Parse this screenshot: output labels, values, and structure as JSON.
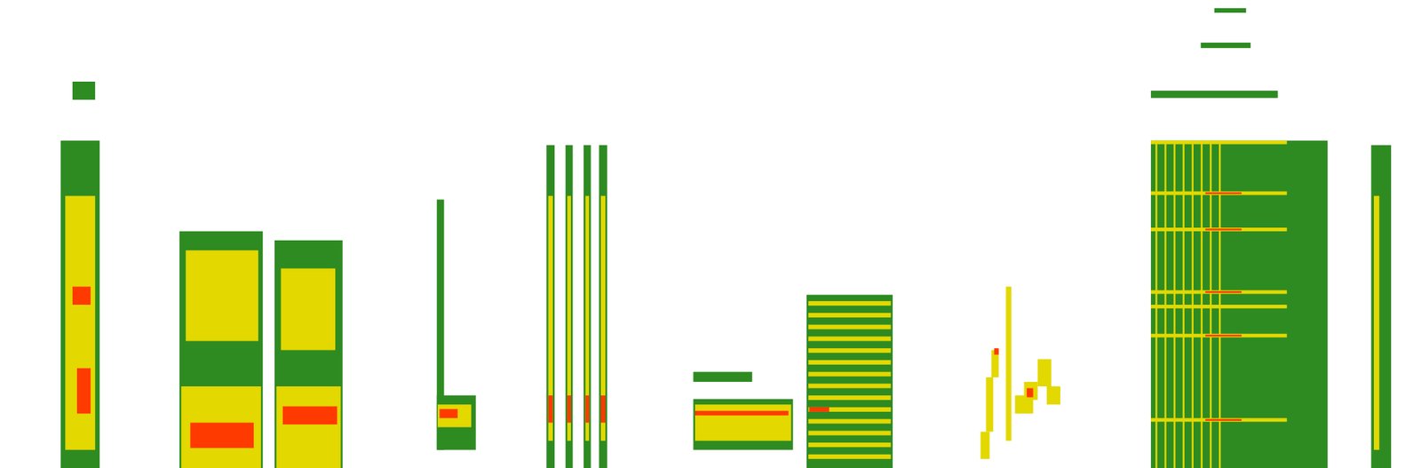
{
  "chart_data": {
    "type": "heatmap",
    "tick_labels": false,
    "xlim": [
      0,
      1568
    ],
    "ylim": [
      0,
      516
    ],
    "levels": [
      1,
      2,
      3
    ],
    "colors": [
      "#2e8b22",
      "#e3d800",
      "#ff3a00"
    ],
    "cells": [
      [
        67,
        110,
        0,
        361,
        1
      ],
      [
        72,
        105,
        20,
        300,
        2
      ],
      [
        80,
        100,
        180,
        200,
        3
      ],
      [
        85,
        100,
        60,
        110,
        3
      ],
      [
        80,
        105,
        406,
        426,
        1
      ],
      [
        198,
        290,
        0,
        261,
        1
      ],
      [
        200,
        288,
        0,
        90,
        2
      ],
      [
        205,
        285,
        140,
        240,
        2
      ],
      [
        210,
        280,
        22,
        50,
        3
      ],
      [
        303,
        378,
        0,
        251,
        1
      ],
      [
        305,
        376,
        0,
        90,
        2
      ],
      [
        310,
        370,
        130,
        220,
        2
      ],
      [
        312,
        372,
        48,
        68,
        3
      ],
      [
        482,
        490,
        20,
        296,
        1
      ],
      [
        482,
        525,
        20,
        80,
        1
      ],
      [
        483,
        520,
        45,
        70,
        2
      ],
      [
        485,
        505,
        55,
        65,
        3
      ],
      [
        603,
        612,
        0,
        356,
        1
      ],
      [
        605,
        610,
        30,
        300,
        2
      ],
      [
        605,
        610,
        50,
        80,
        3
      ],
      [
        624,
        632,
        0,
        356,
        1
      ],
      [
        626,
        630,
        30,
        300,
        2
      ],
      [
        626,
        630,
        50,
        80,
        3
      ],
      [
        644,
        652,
        0,
        356,
        1
      ],
      [
        646,
        650,
        30,
        300,
        2
      ],
      [
        646,
        650,
        50,
        80,
        3
      ],
      [
        661,
        670,
        0,
        356,
        1
      ],
      [
        663,
        668,
        30,
        300,
        2
      ],
      [
        663,
        668,
        50,
        80,
        3
      ],
      [
        765,
        875,
        20,
        76,
        1
      ],
      [
        767,
        873,
        30,
        70,
        2
      ],
      [
        767,
        870,
        58,
        63,
        3
      ],
      [
        765,
        830,
        95,
        106,
        1
      ],
      [
        890,
        985,
        0,
        191,
        1
      ],
      [
        892,
        983,
        10,
        15,
        2
      ],
      [
        892,
        983,
        23,
        28,
        2
      ],
      [
        892,
        983,
        36,
        41,
        2
      ],
      [
        892,
        983,
        49,
        54,
        2
      ],
      [
        892,
        983,
        62,
        67,
        2
      ],
      [
        892,
        983,
        75,
        80,
        2
      ],
      [
        892,
        983,
        88,
        93,
        2
      ],
      [
        892,
        983,
        101,
        106,
        2
      ],
      [
        892,
        983,
        114,
        119,
        2
      ],
      [
        892,
        983,
        127,
        132,
        2
      ],
      [
        892,
        983,
        140,
        145,
        2
      ],
      [
        892,
        983,
        153,
        158,
        2
      ],
      [
        892,
        983,
        166,
        171,
        2
      ],
      [
        892,
        983,
        179,
        184,
        2
      ],
      [
        893,
        915,
        62,
        67,
        3
      ],
      [
        1082,
        1092,
        10,
        40,
        2
      ],
      [
        1088,
        1096,
        40,
        100,
        2
      ],
      [
        1094,
        1102,
        100,
        130,
        2
      ],
      [
        1110,
        1116,
        30,
        200,
        2
      ],
      [
        1120,
        1140,
        60,
        80,
        2
      ],
      [
        1130,
        1145,
        75,
        95,
        2
      ],
      [
        1145,
        1160,
        90,
        120,
        2
      ],
      [
        1155,
        1170,
        70,
        90,
        2
      ],
      [
        1097,
        1102,
        125,
        132,
        3
      ],
      [
        1133,
        1140,
        78,
        88,
        3
      ],
      [
        1270,
        1465,
        0,
        361,
        1
      ],
      [
        1270,
        1410,
        408,
        416,
        1
      ],
      [
        1325,
        1380,
        463,
        469,
        1
      ],
      [
        1340,
        1375,
        502,
        507,
        1
      ],
      [
        1275,
        1277,
        0,
        361,
        2
      ],
      [
        1285,
        1287,
        0,
        361,
        2
      ],
      [
        1295,
        1297,
        0,
        361,
        2
      ],
      [
        1305,
        1307,
        0,
        361,
        2
      ],
      [
        1315,
        1317,
        0,
        361,
        2
      ],
      [
        1325,
        1327,
        0,
        361,
        2
      ],
      [
        1335,
        1337,
        0,
        361,
        2
      ],
      [
        1345,
        1347,
        0,
        361,
        2
      ],
      [
        1270,
        1420,
        357,
        361,
        2
      ],
      [
        1270,
        1420,
        301,
        305,
        2
      ],
      [
        1270,
        1420,
        261,
        265,
        2
      ],
      [
        1270,
        1420,
        192,
        196,
        2
      ],
      [
        1270,
        1420,
        176,
        180,
        2
      ],
      [
        1270,
        1420,
        144,
        148,
        2
      ],
      [
        1270,
        1420,
        51,
        55,
        2
      ],
      [
        1330,
        1370,
        302,
        304,
        3
      ],
      [
        1330,
        1370,
        262,
        264,
        3
      ],
      [
        1330,
        1370,
        193,
        195,
        3
      ],
      [
        1330,
        1370,
        145,
        147,
        3
      ],
      [
        1330,
        1370,
        52,
        54,
        3
      ],
      [
        1513,
        1535,
        0,
        356,
        1
      ],
      [
        1516,
        1522,
        20,
        300,
        2
      ]
    ]
  }
}
